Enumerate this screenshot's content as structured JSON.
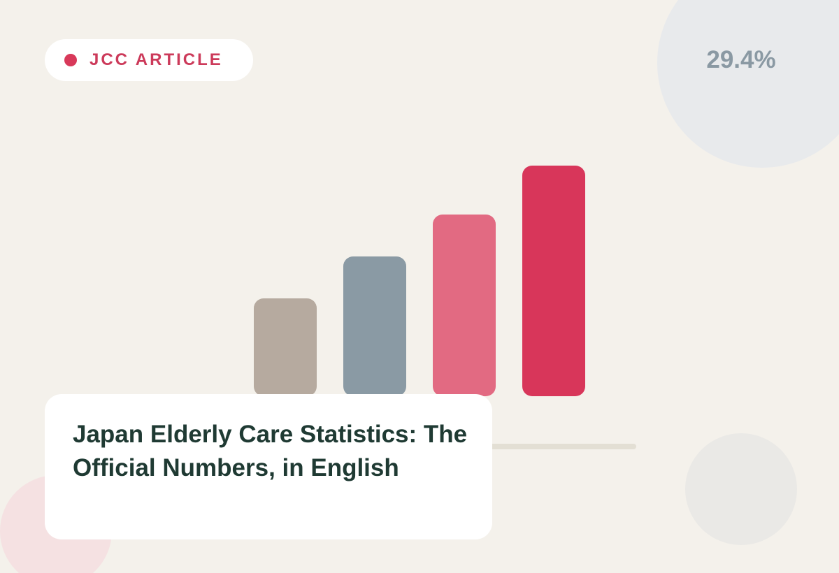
{
  "badge": {
    "label": "JCC ARTICLE"
  },
  "stat": {
    "text": "29.4%"
  },
  "article": {
    "title": "Japan Elderly Care Statistics: The Official Numbers, in English"
  }
}
